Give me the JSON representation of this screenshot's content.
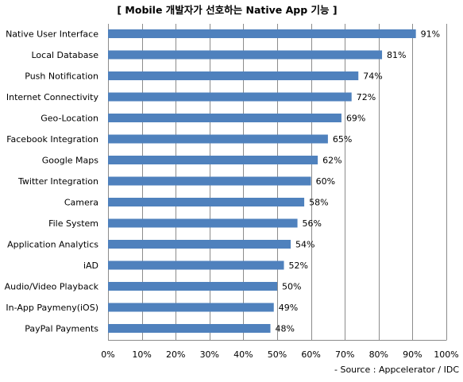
{
  "chart_data": {
    "type": "bar",
    "orientation": "horizontal",
    "title": "[ Mobile 개발자가 선호하는 Native App 기능 ]",
    "source": "- Source : Appcelerator / IDC",
    "categories": [
      "Native User Interface",
      "Local Database",
      "Push Notification",
      "Internet Connectivity",
      "Geo-Location",
      "Facebook Integration",
      "Google Maps",
      "Twitter Integration",
      "Camera",
      "File System",
      "Application Analytics",
      "iAD",
      "Audio/Video Playback",
      "In-App Paymeny(iOS)",
      "PayPal Payments"
    ],
    "values": [
      91,
      81,
      74,
      72,
      69,
      65,
      62,
      60,
      58,
      56,
      54,
      52,
      50,
      49,
      48
    ],
    "value_labels": [
      "91%",
      "81%",
      "74%",
      "72%",
      "69%",
      "65%",
      "62%",
      "60%",
      "58%",
      "56%",
      "54%",
      "52%",
      "50%",
      "49%",
      "48%"
    ],
    "xlim": [
      0,
      100
    ],
    "x_ticks": [
      0,
      10,
      20,
      30,
      40,
      50,
      60,
      70,
      80,
      90,
      100
    ],
    "x_tick_labels": [
      "0%",
      "10%",
      "20%",
      "30%",
      "40%",
      "50%",
      "60%",
      "70%",
      "80%",
      "90%",
      "100%"
    ],
    "grid": true,
    "bar_color": "#4f81bd",
    "grid_color": "#8c8c8c"
  }
}
